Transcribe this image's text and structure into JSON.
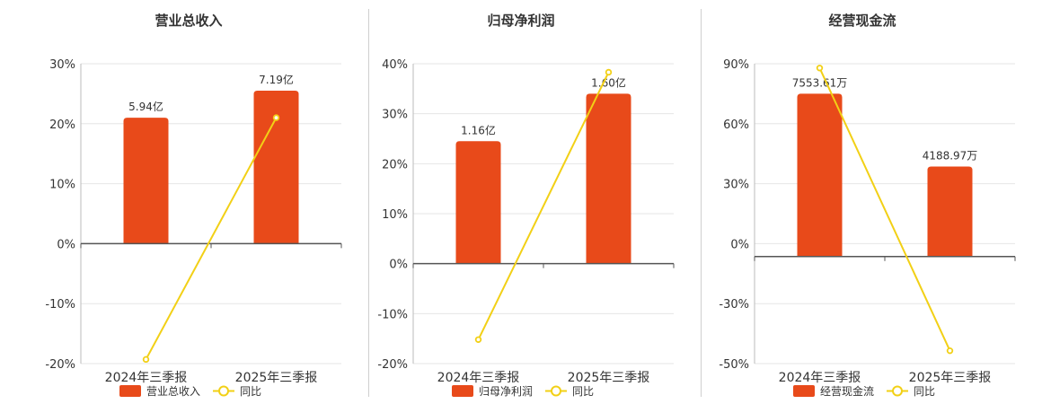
{
  "colors": {
    "bar": "#e84a1a",
    "line": "#f2d016",
    "grid": "#e6e6e6",
    "axis": "#555555",
    "text": "#333333"
  },
  "chart_data": [
    {
      "type": "bar",
      "title": "营业总收入",
      "categories": [
        "2024年三季报",
        "2025年三季报"
      ],
      "series": [
        {
          "name": "营业总收入",
          "kind": "bar",
          "values": [
            21,
            25.5
          ],
          "labels": [
            "5.94亿",
            "7.19亿"
          ]
        },
        {
          "name": "同比",
          "kind": "line",
          "values": [
            -19.3,
            21
          ]
        }
      ],
      "yticks": [
        "30%",
        "20%",
        "10%",
        "0%",
        "-10%",
        "-20%"
      ],
      "ylim": [
        -20,
        30
      ],
      "grid": true,
      "legend": "bottom"
    },
    {
      "type": "bar",
      "title": "归母净利润",
      "categories": [
        "2024年三季报",
        "2025年三季报"
      ],
      "series": [
        {
          "name": "归母净利润",
          "kind": "bar",
          "values": [
            24.5,
            34
          ],
          "labels": [
            "1.16亿",
            "1.60亿"
          ]
        },
        {
          "name": "同比",
          "kind": "line",
          "values": [
            -15.2,
            38.3
          ]
        }
      ],
      "yticks": [
        "40%",
        "30%",
        "20%",
        "10%",
        "0%",
        "-10%",
        "-20%"
      ],
      "ylim": [
        -20,
        40
      ],
      "grid": true,
      "legend": "bottom"
    },
    {
      "type": "bar",
      "title": "经营现金流",
      "categories": [
        "2024年三季报",
        "2025年三季报"
      ],
      "series": [
        {
          "name": "经营现金流",
          "kind": "bar",
          "values": [
            76,
            42
          ],
          "labels": [
            "7553.61万",
            "4188.97万"
          ]
        },
        {
          "name": "同比",
          "kind": "line",
          "values": [
            88,
            -44
          ]
        }
      ],
      "yticks": [
        "90%",
        "60%",
        "30%",
        "0%",
        "-30%",
        "-50%"
      ],
      "ylim": [
        -50,
        90
      ],
      "grid": true,
      "legend": "bottom"
    }
  ]
}
